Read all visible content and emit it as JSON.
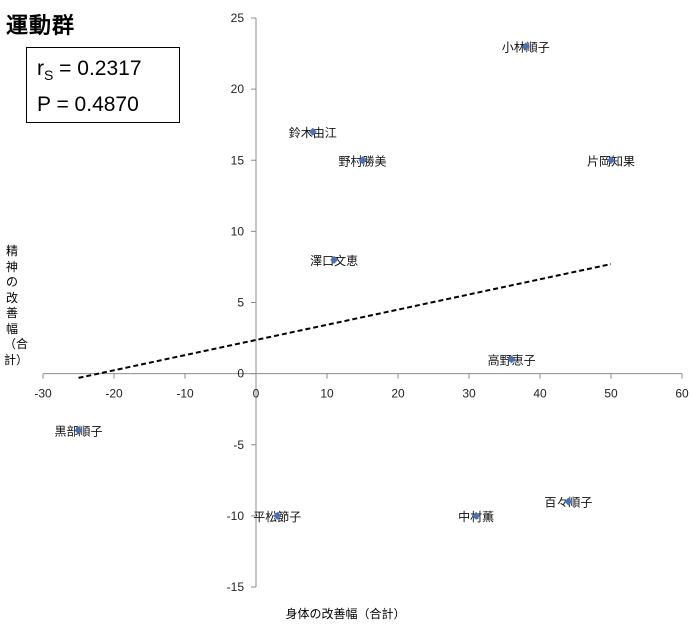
{
  "title": "運動群",
  "stats": {
    "r_prefix": "r",
    "r_sub": "S",
    "r_value": " = 0.2317",
    "p_line": "P = 0.4870"
  },
  "chart_data": {
    "type": "scatter",
    "title": "運動群",
    "xlabel": "身体の改善幅（合計）",
    "ylabel": "精神の改善幅（合計）",
    "xlim": [
      -30,
      60
    ],
    "ylim": [
      -15,
      25
    ],
    "x_ticks": [
      -30,
      -20,
      -10,
      0,
      10,
      20,
      30,
      40,
      50,
      60
    ],
    "y_ticks": [
      -15,
      -10,
      -5,
      0,
      5,
      10,
      15,
      20,
      25
    ],
    "grid": false,
    "marker_color": "#4a72b8",
    "points": [
      {
        "label": "小林順子",
        "x": 38,
        "y": 23
      },
      {
        "label": "鈴木由江",
        "x": 8,
        "y": 17
      },
      {
        "label": "野村勝美",
        "x": 15,
        "y": 15
      },
      {
        "label": "片岡知果",
        "x": 50,
        "y": 15
      },
      {
        "label": "澤口文恵",
        "x": 11,
        "y": 8
      },
      {
        "label": "高野恵子",
        "x": 36,
        "y": 1
      },
      {
        "label": "黒部順子",
        "x": -25,
        "y": -4
      },
      {
        "label": "百々順子",
        "x": 44,
        "y": -9
      },
      {
        "label": "平松節子",
        "x": 3,
        "y": -10
      },
      {
        "label": "中村薫",
        "x": 31,
        "y": -10
      }
    ],
    "trendline": {
      "style": "dashed",
      "x": [
        -25,
        50
      ],
      "y": [
        -0.3,
        7.7
      ]
    }
  }
}
